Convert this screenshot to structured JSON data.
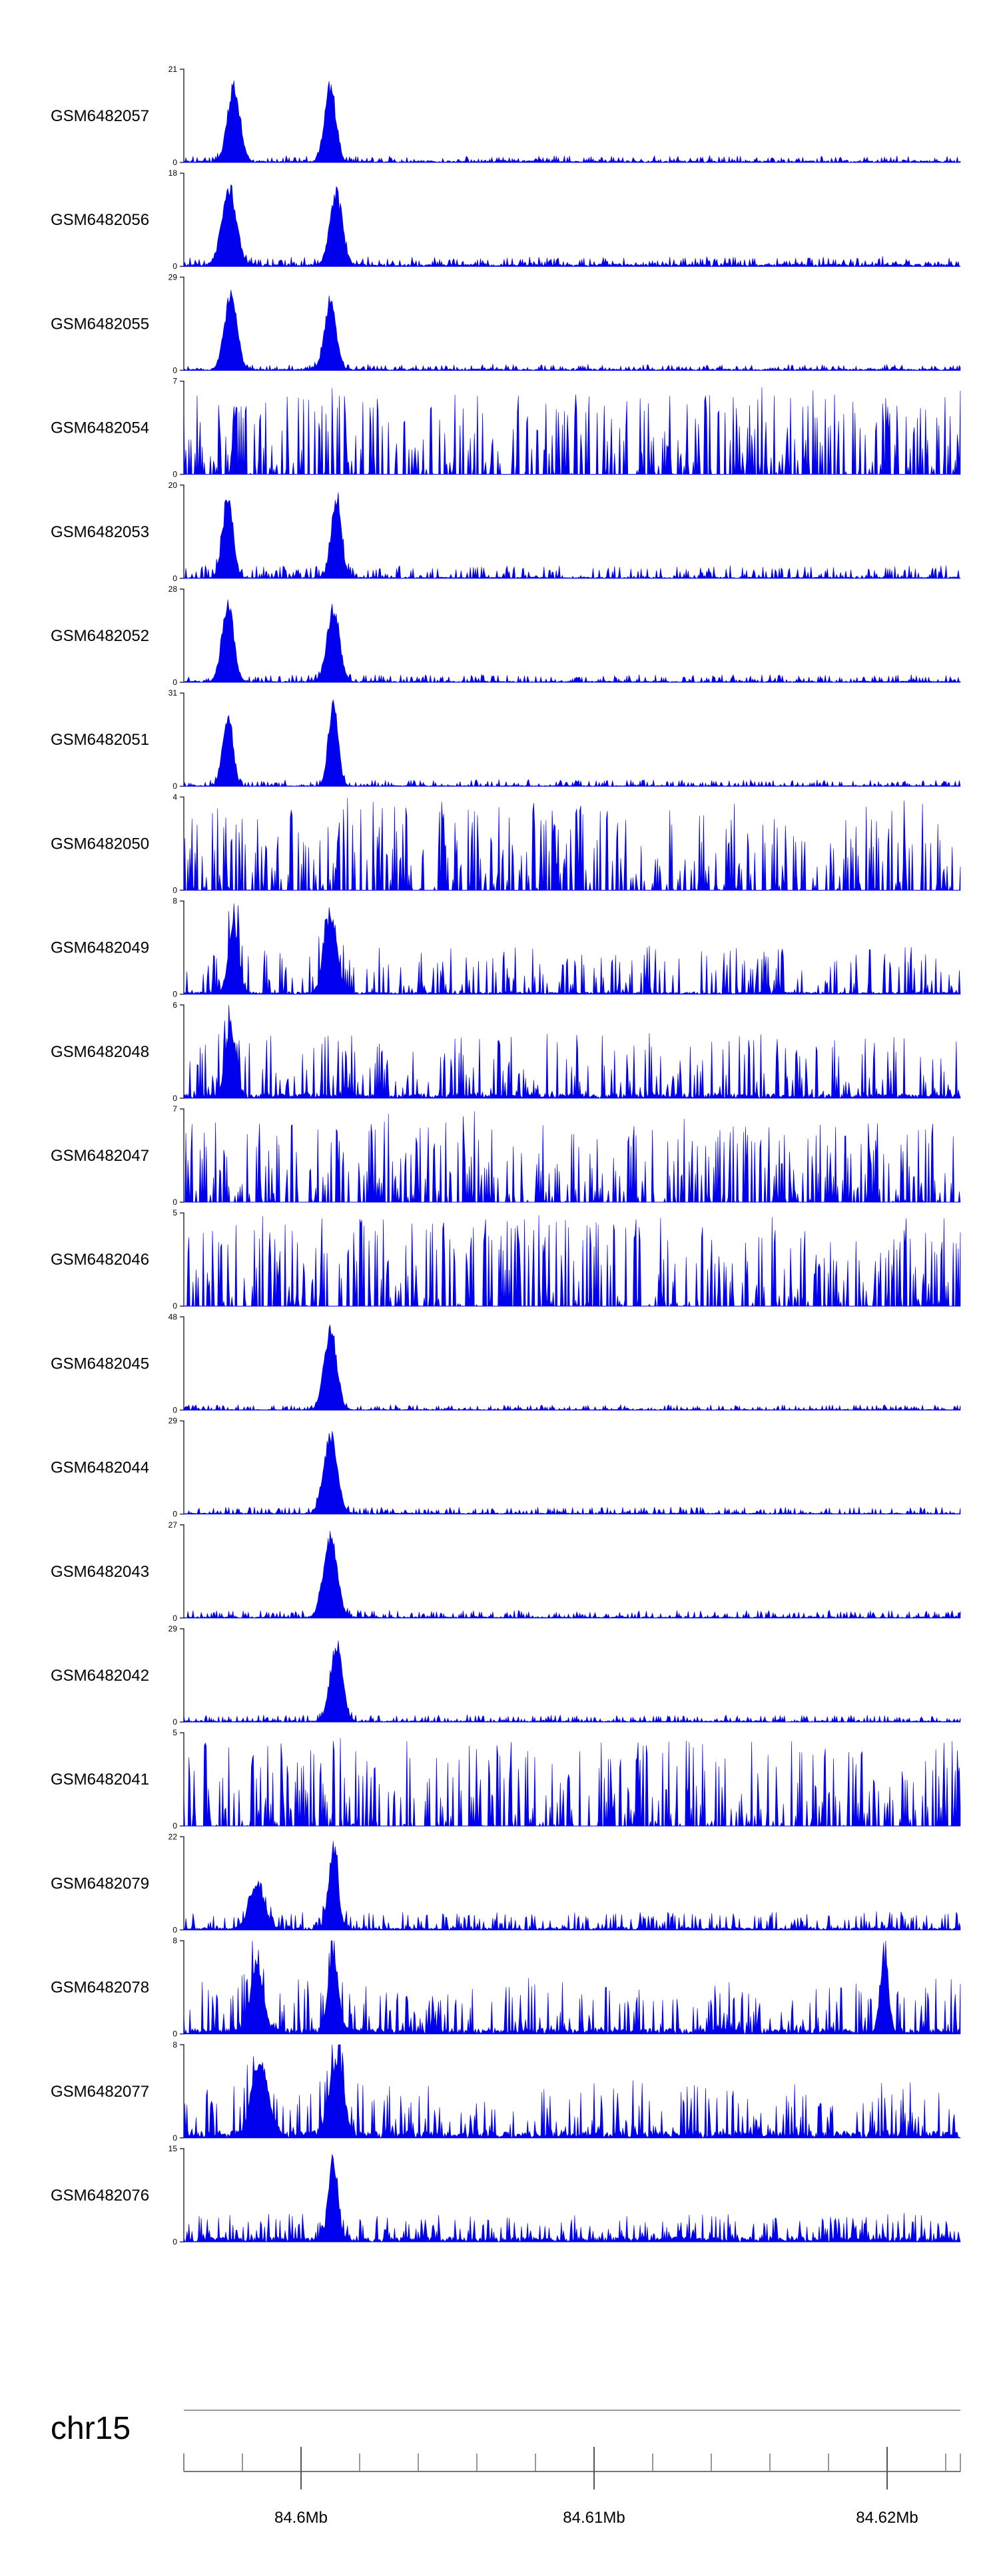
{
  "chart_data": {
    "type": "area",
    "title": "",
    "chromosome": "chr15",
    "fill_color": "#0000ee",
    "x_range_bp": [
      84596000,
      84622500
    ],
    "x_ticks": [
      {
        "label": "84.6Mb",
        "bp": 84600000
      },
      {
        "label": "84.61Mb",
        "bp": 84610000
      },
      {
        "label": "84.62Mb",
        "bp": 84620000
      }
    ],
    "minor_tick_spacing_bp": 2000,
    "tracks": [
      {
        "name": "GSM6482057",
        "ymax": "21",
        "ymin": "0",
        "ylim": [
          0,
          21
        ],
        "profile": "peaks",
        "peaks": [
          [
            84597700,
            18.5,
            300
          ],
          [
            84601000,
            19,
            260
          ]
        ],
        "noise": 1.2,
        "base": 0.4,
        "seed": 11
      },
      {
        "name": "GSM6482056",
        "ymax": "18",
        "ymin": "0",
        "ylim": [
          0,
          18
        ],
        "profile": "peaks",
        "peaks": [
          [
            84597550,
            16.5,
            350
          ],
          [
            84601200,
            15,
            300
          ]
        ],
        "noise": 1.5,
        "base": 0.5,
        "seed": 12
      },
      {
        "name": "GSM6482055",
        "ymax": "29",
        "ymin": "0",
        "ylim": [
          0,
          29
        ],
        "profile": "peaks",
        "peaks": [
          [
            84597600,
            26,
            300
          ],
          [
            84601000,
            23,
            280
          ]
        ],
        "noise": 1.5,
        "base": 0.5,
        "seed": 13
      },
      {
        "name": "GSM6482054",
        "ymax": "7",
        "ymin": "0",
        "ylim": [
          0,
          7
        ],
        "profile": "sparse",
        "noise": 6.0,
        "base": 0.0,
        "seed": 14
      },
      {
        "name": "GSM6482053",
        "ymax": "20",
        "ymin": "0",
        "ylim": [
          0,
          20
        ],
        "profile": "peaks",
        "peaks": [
          [
            84597500,
            19,
            250
          ],
          [
            84601200,
            18,
            250
          ]
        ],
        "noise": 2.5,
        "base": 0.3,
        "seed": 15
      },
      {
        "name": "GSM6482052",
        "ymax": "28",
        "ymin": "0",
        "ylim": [
          0,
          28
        ],
        "profile": "peaks",
        "peaks": [
          [
            84597500,
            26,
            280
          ],
          [
            84601100,
            24,
            300
          ]
        ],
        "noise": 2.0,
        "base": 0.4,
        "seed": 16
      },
      {
        "name": "GSM6482051",
        "ymax": "31",
        "ymin": "0",
        "ylim": [
          0,
          31
        ],
        "profile": "peaks",
        "peaks": [
          [
            84597500,
            26,
            240
          ],
          [
            84601100,
            30,
            230
          ]
        ],
        "noise": 2.0,
        "base": 0.3,
        "seed": 17
      },
      {
        "name": "GSM6482050",
        "ymax": "4",
        "ymin": "0",
        "ylim": [
          0,
          4
        ],
        "profile": "sparse",
        "noise": 3.8,
        "base": 0.0,
        "seed": 18
      },
      {
        "name": "GSM6482049",
        "ymax": "8",
        "ymin": "0",
        "ylim": [
          0,
          8
        ],
        "profile": "mixed",
        "peaks": [
          [
            84597700,
            6.5,
            250
          ],
          [
            84601000,
            7.5,
            300
          ]
        ],
        "noise": 4.0,
        "base": 0.2,
        "seed": 19
      },
      {
        "name": "GSM6482048",
        "ymax": "6",
        "ymin": "0",
        "ylim": [
          0,
          6
        ],
        "profile": "mixed",
        "peaks": [
          [
            84597600,
            5.0,
            250
          ]
        ],
        "noise": 4.0,
        "base": 0.3,
        "seed": 20
      },
      {
        "name": "GSM6482047",
        "ymax": "7",
        "ymin": "0",
        "ylim": [
          0,
          7
        ],
        "profile": "sparse",
        "noise": 6.0,
        "base": 0.0,
        "seed": 21
      },
      {
        "name": "GSM6482046",
        "ymax": "5",
        "ymin": "0",
        "ylim": [
          0,
          5
        ],
        "profile": "sparse",
        "noise": 4.8,
        "base": 0.0,
        "seed": 22
      },
      {
        "name": "GSM6482045",
        "ymax": "48",
        "ymin": "0",
        "ylim": [
          0,
          48
        ],
        "profile": "peaks",
        "peaks": [
          [
            84601000,
            45,
            300
          ]
        ],
        "noise": 2.5,
        "base": 0.4,
        "seed": 23
      },
      {
        "name": "GSM6482044",
        "ymax": "29",
        "ymin": "0",
        "ylim": [
          0,
          29
        ],
        "profile": "peaks",
        "peaks": [
          [
            84601000,
            27,
            320
          ]
        ],
        "noise": 2.0,
        "base": 0.4,
        "seed": 24
      },
      {
        "name": "GSM6482043",
        "ymax": "27",
        "ymin": "0",
        "ylim": [
          0,
          27
        ],
        "profile": "peaks",
        "peaks": [
          [
            84601000,
            25,
            330
          ]
        ],
        "noise": 2.0,
        "base": 0.4,
        "seed": 25
      },
      {
        "name": "GSM6482042",
        "ymax": "29",
        "ymin": "0",
        "ylim": [
          0,
          29
        ],
        "profile": "peaks",
        "peaks": [
          [
            84601200,
            26,
            300
          ]
        ],
        "noise": 2.0,
        "base": 0.4,
        "seed": 26
      },
      {
        "name": "GSM6482041",
        "ymax": "5",
        "ymin": "0",
        "ylim": [
          0,
          5
        ],
        "profile": "sparse",
        "noise": 4.6,
        "base": 0.0,
        "seed": 27
      },
      {
        "name": "GSM6482079",
        "ymax": "22",
        "ymin": "0",
        "ylim": [
          0,
          22
        ],
        "profile": "peaks",
        "peaks": [
          [
            84598500,
            12,
            350
          ],
          [
            84601100,
            21,
            230
          ]
        ],
        "noise": 4.0,
        "base": 0.6,
        "seed": 28
      },
      {
        "name": "GSM6482078",
        "ymax": "8",
        "ymin": "0",
        "ylim": [
          0,
          8
        ],
        "profile": "mixed",
        "peaks": [
          [
            84598500,
            6.5,
            300
          ],
          [
            84601100,
            7,
            250
          ],
          [
            84619900,
            7,
            200
          ]
        ],
        "noise": 4.5,
        "base": 0.5,
        "seed": 29
      },
      {
        "name": "GSM6482077",
        "ymax": "8",
        "ymin": "0",
        "ylim": [
          0,
          8
        ],
        "profile": "mixed",
        "peaks": [
          [
            84598600,
            7.0,
            400
          ],
          [
            84601200,
            7.2,
            350
          ]
        ],
        "noise": 4.5,
        "base": 0.6,
        "seed": 30
      },
      {
        "name": "GSM6482076",
        "ymax": "15",
        "ymin": "0",
        "ylim": [
          0,
          15
        ],
        "profile": "peaks",
        "peaks": [
          [
            84601100,
            14,
            220
          ]
        ],
        "noise": 4.0,
        "base": 0.8,
        "seed": 31
      }
    ]
  }
}
